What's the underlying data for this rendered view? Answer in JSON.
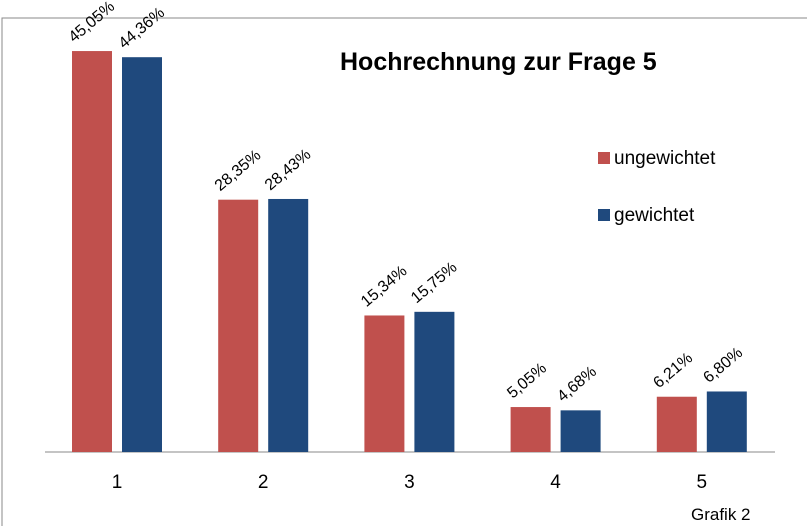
{
  "chart_data": {
    "type": "bar",
    "title": "Hochrechnung zur Frage 5",
    "categories": [
      "1",
      "2",
      "3",
      "4",
      "5"
    ],
    "series": [
      {
        "name": "ungewichtet",
        "color": "#c0504d",
        "values": [
          45.05,
          28.35,
          15.34,
          5.05,
          6.21
        ],
        "value_labels": [
          "45,05%",
          "28,35%",
          "15,34%",
          "5,05%",
          "6,21%"
        ]
      },
      {
        "name": "gewichtet",
        "color": "#1f497d",
        "values": [
          44.36,
          28.43,
          15.75,
          4.68,
          6.8
        ],
        "value_labels": [
          "44,36%",
          "28,43%",
          "15,75%",
          "4,68%",
          "6,80%"
        ]
      }
    ],
    "legend": "right",
    "note": "Grafik 2"
  }
}
